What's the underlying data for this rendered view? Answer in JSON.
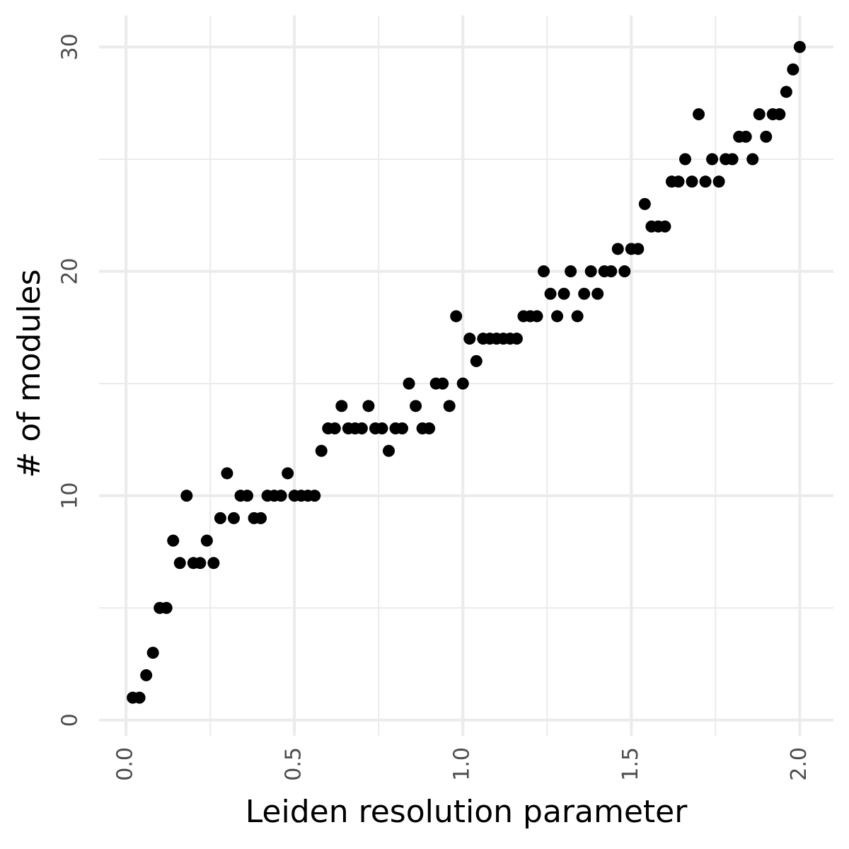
{
  "chart_data": {
    "type": "scatter",
    "x_label": "Leiden resolution parameter",
    "y_label": "# of modules",
    "color": "#000000",
    "grid": true,
    "xlim": [
      -0.08,
      2.1
    ],
    "ylim": [
      -0.7,
      31.4
    ],
    "xticks": [
      {
        "value": 0,
        "label": "0.0"
      },
      {
        "value": 0.5,
        "label": "0.5"
      },
      {
        "value": 1,
        "label": "1.0"
      },
      {
        "value": 1.5,
        "label": "1.5"
      },
      {
        "value": 2,
        "label": "2.0"
      }
    ],
    "yticks": [
      0,
      10,
      20,
      30
    ],
    "x": [
      0.02,
      0.04,
      0.06,
      0.08,
      0.1,
      0.12,
      0.14,
      0.16,
      0.18,
      0.2,
      0.22,
      0.24,
      0.26,
      0.28,
      0.3,
      0.32,
      0.34,
      0.36,
      0.38,
      0.4,
      0.42,
      0.44,
      0.46,
      0.48,
      0.5,
      0.52,
      0.54,
      0.56,
      0.58,
      0.6,
      0.62,
      0.64,
      0.66,
      0.68,
      0.7,
      0.72,
      0.74,
      0.76,
      0.78,
      0.8,
      0.82,
      0.84,
      0.86,
      0.88,
      0.9,
      0.92,
      0.94,
      0.96,
      0.98,
      1.0,
      1.02,
      1.04,
      1.06,
      1.08,
      1.1,
      1.12,
      1.14,
      1.16,
      1.18,
      1.2,
      1.22,
      1.24,
      1.26,
      1.28,
      1.3,
      1.32,
      1.34,
      1.36,
      1.38,
      1.4,
      1.42,
      1.44,
      1.46,
      1.48,
      1.5,
      1.52,
      1.54,
      1.56,
      1.58,
      1.6,
      1.62,
      1.64,
      1.66,
      1.68,
      1.7,
      1.72,
      1.74,
      1.76,
      1.78,
      1.8,
      1.82,
      1.84,
      1.86,
      1.88,
      1.9,
      1.92,
      1.94,
      1.96,
      1.98,
      2.0
    ],
    "values": [
      1,
      1,
      2,
      3,
      5,
      5,
      8,
      7,
      10,
      7,
      7,
      8,
      7,
      9,
      11,
      9,
      10,
      10,
      9,
      9,
      10,
      10,
      10,
      11,
      10,
      10,
      10,
      10,
      12,
      13,
      13,
      14,
      13,
      13,
      13,
      14,
      13,
      13,
      12,
      13,
      13,
      15,
      14,
      13,
      13,
      15,
      15,
      14,
      18,
      15,
      17,
      16,
      17,
      17,
      17,
      17,
      17,
      17,
      18,
      18,
      18,
      20,
      19,
      18,
      19,
      20,
      18,
      19,
      20,
      19,
      20,
      20,
      21,
      20,
      21,
      21,
      23,
      22,
      22,
      22,
      24,
      24,
      25,
      24,
      27,
      24,
      25,
      24,
      25,
      25,
      26,
      26,
      25,
      27,
      26,
      27,
      27,
      28,
      29,
      30
    ]
  }
}
